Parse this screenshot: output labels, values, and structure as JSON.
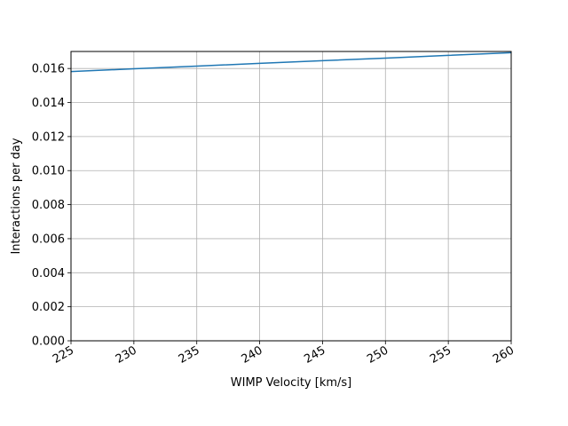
{
  "chart_data": {
    "type": "line",
    "title": "",
    "xlabel": "WIMP Velocity [km/s]",
    "ylabel": "Interactions per day",
    "xlim": [
      225,
      260
    ],
    "ylim": [
      0,
      0.017
    ],
    "xticks": [
      225,
      230,
      235,
      240,
      245,
      250,
      255,
      260
    ],
    "xtick_labels": [
      "225",
      "230",
      "235",
      "240",
      "245",
      "250",
      "255",
      "260"
    ],
    "yticks": [
      0,
      0.002,
      0.004,
      0.006,
      0.008,
      0.01,
      0.012,
      0.014,
      0.016
    ],
    "ytick_labels": [
      "0.000",
      "0.002",
      "0.004",
      "0.006",
      "0.008",
      "0.010",
      "0.012",
      "0.014",
      "0.016"
    ],
    "grid": true,
    "series": [
      {
        "color": "#1f77b4",
        "x": [
          225,
          230,
          235,
          240,
          245,
          250,
          255,
          260
        ],
        "y": [
          0.01582,
          0.01598,
          0.01614,
          0.0163,
          0.01646,
          0.01661,
          0.01677,
          0.01693
        ]
      }
    ]
  }
}
